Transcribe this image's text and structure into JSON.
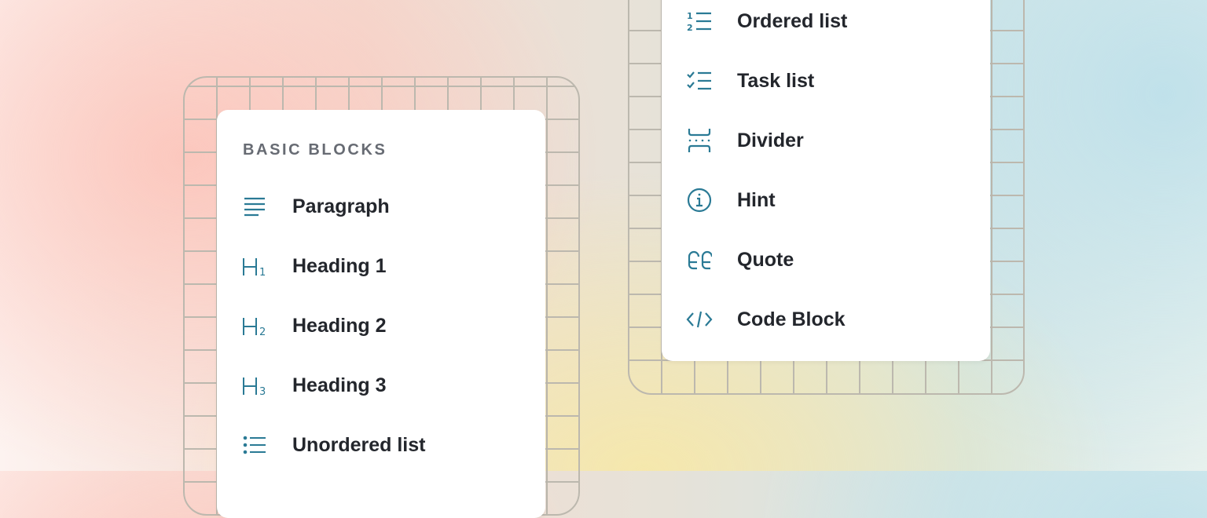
{
  "left_menu": {
    "header": "BASIC BLOCKS",
    "items": [
      {
        "label": "Paragraph",
        "icon": "paragraph-icon"
      },
      {
        "label": "Heading 1",
        "icon": "heading-1-icon"
      },
      {
        "label": "Heading 2",
        "icon": "heading-2-icon"
      },
      {
        "label": "Heading 3",
        "icon": "heading-3-icon"
      },
      {
        "label": "Unordered list",
        "icon": "unordered-list-icon"
      }
    ]
  },
  "right_menu": {
    "items": [
      {
        "label": "Ordered list",
        "icon": "ordered-list-icon"
      },
      {
        "label": "Task list",
        "icon": "task-list-icon"
      },
      {
        "label": "Divider",
        "icon": "divider-icon"
      },
      {
        "label": "Hint",
        "icon": "info-icon"
      },
      {
        "label": "Quote",
        "icon": "quote-icon"
      },
      {
        "label": "Code Block",
        "icon": "code-icon"
      }
    ]
  },
  "colors": {
    "icon": "#2a7a95",
    "text": "#23262c",
    "header": "#676b73"
  }
}
